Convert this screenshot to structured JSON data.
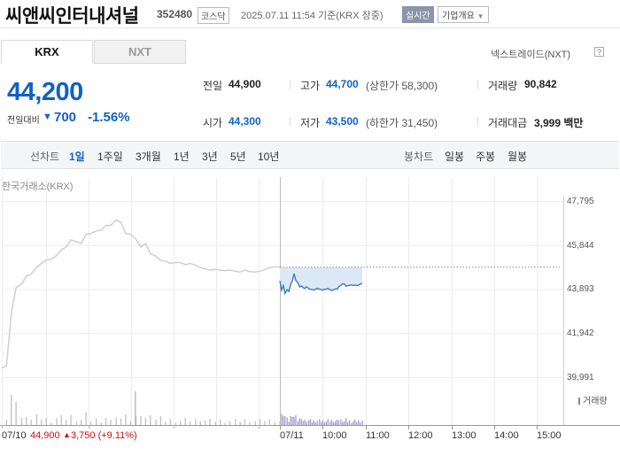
{
  "header": {
    "company_name": "씨앤씨인터내셔널",
    "stock_code": "352480",
    "market_badge": "코스닥",
    "datetime": "2025.07.11 11:54 기준(KRX 장중)",
    "realtime_badge": "실시간",
    "company_info_button": "기업개요"
  },
  "tabs": [
    {
      "label": "KRX",
      "active": true
    },
    {
      "label": "NXT",
      "active": false
    }
  ],
  "nxt_link": "넥스트레이드(NXT)",
  "help_icon": "question-icon",
  "price": {
    "current": "44,200",
    "change_label": "전일대비",
    "change_direction": "down",
    "change_value": "700",
    "change_pct": "-1.56%"
  },
  "quote": {
    "prev_close_label": "전일",
    "prev_close": "44,900",
    "high_label": "고가",
    "high": "44,700",
    "upper_limit": "(상한가 58,300)",
    "volume_label": "거래량",
    "volume": "90,842",
    "open_label": "시가",
    "open": "44,300",
    "low_label": "저가",
    "low": "43,500",
    "lower_limit": "(하한가 31,450)",
    "amount_label": "거래대금",
    "amount": "3,999 백만"
  },
  "toolbar": {
    "line_label": "선차트",
    "line_periods": [
      "1일",
      "1주일",
      "3개월",
      "1년",
      "3년",
      "5년",
      "10년"
    ],
    "candle_label": "봉차트",
    "candle_periods": [
      "일봉",
      "주봉",
      "월봉"
    ]
  },
  "chart_label": "한국거래소(KRX)",
  "volume_legend": "거래량",
  "prev_day": {
    "date": "07/10",
    "close": "44,900",
    "change": "3,750 (+9.11%)"
  },
  "colors": {
    "down": "#1261c4",
    "up": "#d01010",
    "prev_line": "#cfcfcf",
    "today_line": "#3f79c4",
    "today_fill": "#dce8f6"
  },
  "chart_data": {
    "type": "line",
    "ylim": [
      39991,
      47795
    ],
    "y_ticks": [
      "47,795",
      "45,844",
      "43,893",
      "41,942",
      "39,991"
    ],
    "x_ticks": [
      "07/11",
      "10:00",
      "11:00",
      "12:00",
      "13:00",
      "14:00",
      "15:00"
    ],
    "reference_price": 44900,
    "series": [
      {
        "day": "07/10",
        "points": [
          [
            0,
            40430
          ],
          [
            0.06,
            40540
          ],
          [
            0.12,
            42860
          ],
          [
            0.18,
            43990
          ],
          [
            0.25,
            44160
          ],
          [
            0.31,
            44500
          ],
          [
            0.37,
            44600
          ],
          [
            0.44,
            44900
          ],
          [
            0.5,
            45070
          ],
          [
            0.56,
            45220
          ],
          [
            0.62,
            45240
          ],
          [
            0.69,
            45420
          ],
          [
            0.75,
            45670
          ],
          [
            0.81,
            45800
          ],
          [
            0.87,
            46110
          ],
          [
            0.94,
            46030
          ],
          [
            1.0,
            45950
          ],
          [
            1.06,
            46360
          ],
          [
            1.12,
            46400
          ],
          [
            1.19,
            46510
          ],
          [
            1.25,
            46540
          ],
          [
            1.31,
            46750
          ],
          [
            1.37,
            46750
          ],
          [
            1.44,
            47000
          ],
          [
            1.5,
            46880
          ],
          [
            1.56,
            46390
          ],
          [
            1.62,
            46360
          ],
          [
            1.69,
            46140
          ],
          [
            1.75,
            45800
          ],
          [
            1.81,
            45950
          ],
          [
            1.87,
            45500
          ],
          [
            1.94,
            45390
          ],
          [
            2.0,
            45200
          ],
          [
            2.06,
            45170
          ],
          [
            2.12,
            45070
          ],
          [
            2.19,
            45110
          ],
          [
            2.25,
            45110
          ],
          [
            2.31,
            45020
          ],
          [
            2.37,
            45070
          ],
          [
            2.44,
            44990
          ],
          [
            2.5,
            44880
          ],
          [
            2.56,
            44830
          ],
          [
            2.62,
            44770
          ],
          [
            2.69,
            44810
          ],
          [
            2.75,
            44770
          ],
          [
            2.81,
            44750
          ],
          [
            2.87,
            44770
          ],
          [
            2.94,
            44730
          ],
          [
            3.0,
            44690
          ],
          [
            3.06,
            44770
          ],
          [
            3.12,
            44710
          ],
          [
            3.19,
            44690
          ],
          [
            3.25,
            44730
          ],
          [
            3.31,
            44800
          ],
          [
            3.37,
            44880
          ],
          [
            3.44,
            44920
          ],
          [
            3.5,
            44900
          ]
        ]
      },
      {
        "day": "07/11",
        "points": [
          [
            0,
            44300
          ],
          [
            0.04,
            43890
          ],
          [
            0.08,
            44090
          ],
          [
            0.12,
            43740
          ],
          [
            0.17,
            43910
          ],
          [
            0.21,
            43830
          ],
          [
            0.25,
            44130
          ],
          [
            0.29,
            44300
          ],
          [
            0.33,
            44610
          ],
          [
            0.37,
            44320
          ],
          [
            0.42,
            44210
          ],
          [
            0.46,
            44030
          ],
          [
            0.5,
            44070
          ],
          [
            0.54,
            44000
          ],
          [
            0.58,
            43960
          ],
          [
            0.62,
            44030
          ],
          [
            0.67,
            43960
          ],
          [
            0.71,
            43920
          ],
          [
            0.75,
            43910
          ],
          [
            0.79,
            43890
          ],
          [
            0.83,
            43930
          ],
          [
            0.87,
            43960
          ],
          [
            0.92,
            43930
          ],
          [
            0.96,
            43910
          ],
          [
            1.0,
            43890
          ],
          [
            1.04,
            43930
          ],
          [
            1.08,
            43920
          ],
          [
            1.12,
            43960
          ],
          [
            1.17,
            43910
          ],
          [
            1.21,
            43870
          ],
          [
            1.25,
            43910
          ],
          [
            1.29,
            43940
          ],
          [
            1.33,
            43930
          ],
          [
            1.37,
            44030
          ],
          [
            1.42,
            44100
          ],
          [
            1.46,
            44170
          ],
          [
            1.5,
            44150
          ],
          [
            1.54,
            44060
          ],
          [
            1.58,
            44080
          ],
          [
            1.62,
            44100
          ],
          [
            1.67,
            44120
          ],
          [
            1.71,
            44090
          ],
          [
            1.75,
            44110
          ],
          [
            1.79,
            44090
          ],
          [
            1.83,
            44110
          ],
          [
            1.87,
            44150
          ],
          [
            1.92,
            44200
          ]
        ]
      }
    ]
  }
}
